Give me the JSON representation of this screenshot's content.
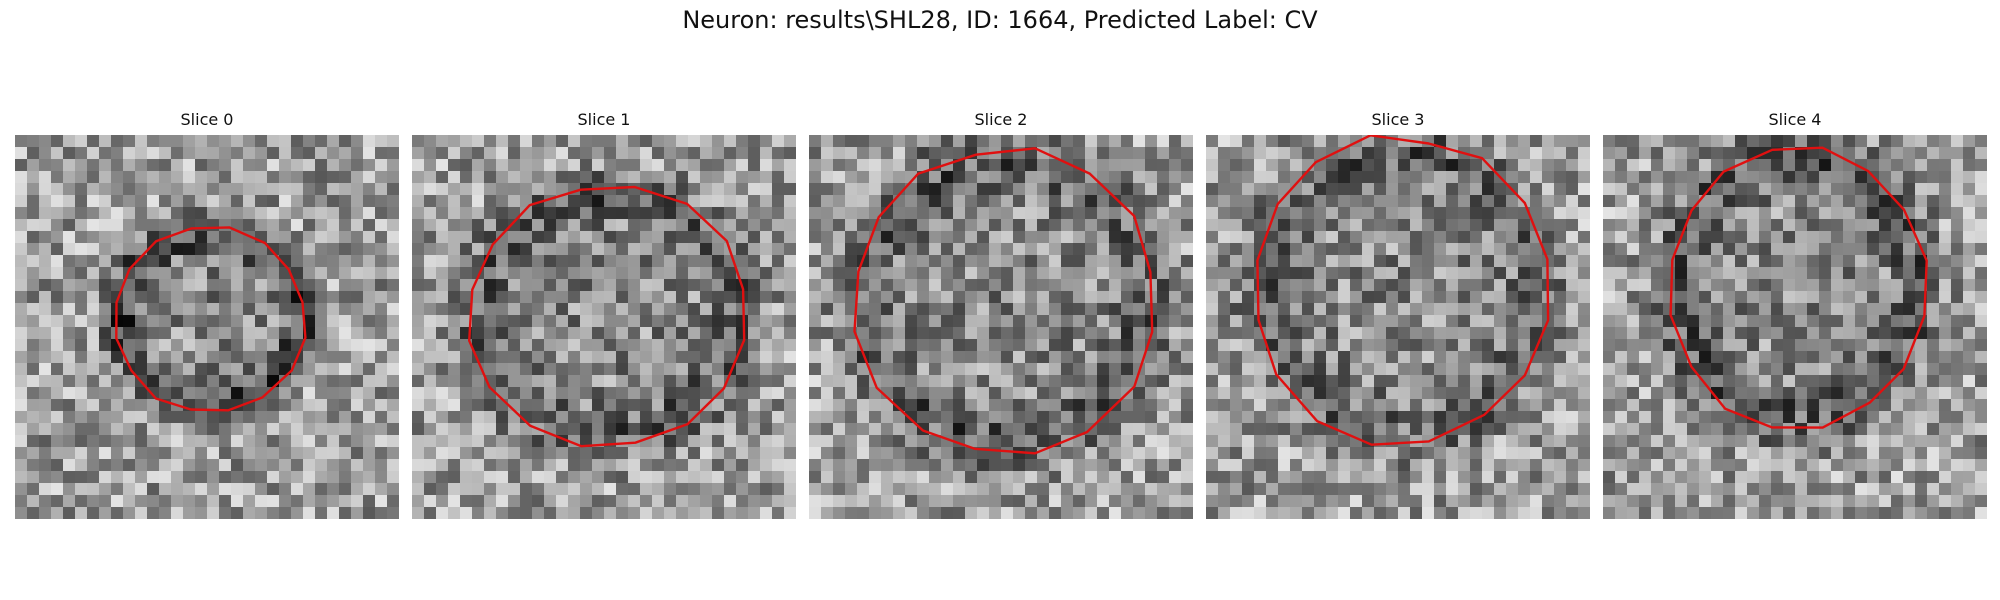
{
  "figure": {
    "title": "Neuron: results\\SHL28, ID: 1664, Predicted Label: CV",
    "contour_color": "#e01010"
  },
  "slices": [
    {
      "label": "Slice 0"
    },
    {
      "label": "Slice 1"
    },
    {
      "label": "Slice 2"
    },
    {
      "label": "Slice 3"
    },
    {
      "label": "Slice 4"
    }
  ]
}
